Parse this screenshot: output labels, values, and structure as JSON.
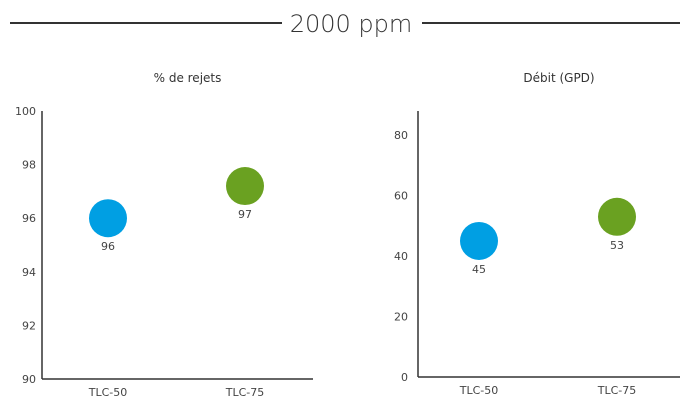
{
  "header": {
    "title": "2000 ppm"
  },
  "chart_data": [
    {
      "type": "scatter",
      "title": "% de rejets",
      "categories": [
        "TLC-50",
        "TLC-75"
      ],
      "values": [
        96,
        97
      ],
      "value_labels": [
        "96",
        "97"
      ],
      "marker_colors": [
        "#009fe3",
        "#6aa121"
      ],
      "ylim": [
        90,
        100
      ],
      "yticks": [
        90,
        92,
        94,
        96,
        98,
        100
      ],
      "ytick_labels": [
        "90",
        "92",
        "94",
        "96",
        "98",
        "100"
      ],
      "value_scale": "96 plotted at 96.0, 97 plotted at 97.2 (visual estimate)",
      "grid": false,
      "legend": "none"
    },
    {
      "type": "scatter",
      "title": "Débit (GPD)",
      "categories": [
        "TLC-50",
        "TLC-75"
      ],
      "values": [
        45,
        53
      ],
      "value_labels": [
        "45",
        "53"
      ],
      "marker_colors": [
        "#009fe3",
        "#6aa121"
      ],
      "ylim": [
        0,
        88
      ],
      "yticks": [
        0,
        20,
        40,
        60,
        80
      ],
      "ytick_labels": [
        "0",
        "20",
        "40",
        "60",
        "80"
      ],
      "grid": false,
      "legend": "none"
    }
  ]
}
